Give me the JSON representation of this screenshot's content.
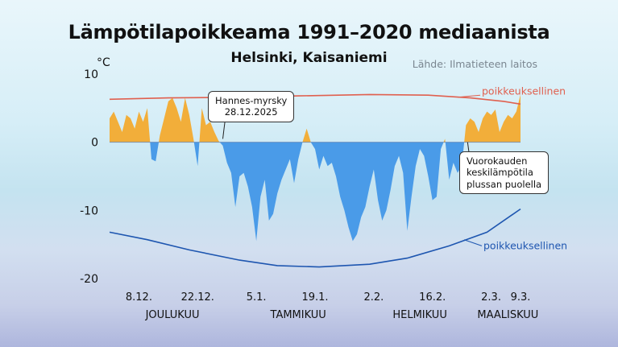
{
  "chart_data": {
    "type": "area",
    "title": "Lämpötilapoikkeama 1991–2020 mediaanista",
    "subtitle": "Helsinki, Kaisaniemi",
    "source": "Lähde: Ilmatieteen laitos",
    "ylabel": "°C",
    "ylim": [
      -20,
      10
    ],
    "yticks": [
      {
        "value": 10,
        "label": "10"
      },
      {
        "value": 0,
        "label": "0"
      },
      {
        "value": -10,
        "label": "-10"
      },
      {
        "value": -20,
        "label": "-20"
      }
    ],
    "x_start": "2025-12-01",
    "x_end": "2026-03-09",
    "xticks": [
      {
        "date": "2025-12-08",
        "label": "8.12."
      },
      {
        "date": "2025-12-22",
        "label": "22.12."
      },
      {
        "date": "2026-01-05",
        "label": "5.1."
      },
      {
        "date": "2026-01-19",
        "label": "19.1."
      },
      {
        "date": "2026-02-02",
        "label": "2.2."
      },
      {
        "date": "2026-02-16",
        "label": "16.2."
      },
      {
        "date": "2026-03-02",
        "label": "2.3."
      },
      {
        "date": "2026-03-09",
        "label": "9.3."
      }
    ],
    "months": [
      {
        "date": "2025-12-16",
        "label": "JOULUKUU"
      },
      {
        "date": "2026-01-15",
        "label": "TAMMIKUU"
      },
      {
        "date": "2026-02-13",
        "label": "HELMIKUU"
      },
      {
        "date": "2026-03-06",
        "label": "MAALISKUU"
      }
    ],
    "series": [
      {
        "color_pos": "#f2ae3a",
        "color_neg": "#4a9be8",
        "points": [
          [
            "2025-12-01",
            3.5
          ],
          [
            "2025-12-02",
            4.5
          ],
          [
            "2025-12-03",
            3.0
          ],
          [
            "2025-12-04",
            1.5
          ],
          [
            "2025-12-05",
            4.0
          ],
          [
            "2025-12-06",
            3.5
          ],
          [
            "2025-12-07",
            2.0
          ],
          [
            "2025-12-08",
            4.5
          ],
          [
            "2025-12-09",
            3.0
          ],
          [
            "2025-12-10",
            5.0
          ],
          [
            "2025-12-11",
            -2.5
          ],
          [
            "2025-12-12",
            -2.8
          ],
          [
            "2025-12-13",
            1.0
          ],
          [
            "2025-12-14",
            3.5
          ],
          [
            "2025-12-15",
            6.0
          ],
          [
            "2025-12-16",
            6.5
          ],
          [
            "2025-12-17",
            5.0
          ],
          [
            "2025-12-18",
            3.0
          ],
          [
            "2025-12-19",
            6.5
          ],
          [
            "2025-12-20",
            4.0
          ],
          [
            "2025-12-21",
            0.5
          ],
          [
            "2025-12-22",
            -3.5
          ],
          [
            "2025-12-23",
            5.0
          ],
          [
            "2025-12-24",
            2.5
          ],
          [
            "2025-12-25",
            3.0
          ],
          [
            "2025-12-26",
            1.5
          ],
          [
            "2025-12-27",
            0.2
          ],
          [
            "2025-12-28",
            -0.5
          ],
          [
            "2025-12-29",
            -3.0
          ],
          [
            "2025-12-30",
            -4.5
          ],
          [
            "2025-12-31",
            -9.5
          ],
          [
            "2026-01-01",
            -5.0
          ],
          [
            "2026-01-02",
            -4.5
          ],
          [
            "2026-01-03",
            -6.5
          ],
          [
            "2026-01-04",
            -9.5
          ],
          [
            "2026-01-05",
            -14.5
          ],
          [
            "2026-01-06",
            -8.0
          ],
          [
            "2026-01-07",
            -5.5
          ],
          [
            "2026-01-08",
            -11.5
          ],
          [
            "2026-01-09",
            -10.5
          ],
          [
            "2026-01-10",
            -7.5
          ],
          [
            "2026-01-11",
            -5.5
          ],
          [
            "2026-01-12",
            -4.0
          ],
          [
            "2026-01-13",
            -2.5
          ],
          [
            "2026-01-14",
            -6.0
          ],
          [
            "2026-01-15",
            -2.5
          ],
          [
            "2026-01-16",
            0.0
          ],
          [
            "2026-01-17",
            2.0
          ],
          [
            "2026-01-18",
            0.0
          ],
          [
            "2026-01-19",
            -1.0
          ],
          [
            "2026-01-20",
            -4.0
          ],
          [
            "2026-01-21",
            -2.0
          ],
          [
            "2026-01-22",
            -3.5
          ],
          [
            "2026-01-23",
            -3.0
          ],
          [
            "2026-01-24",
            -5.0
          ],
          [
            "2026-01-25",
            -8.0
          ],
          [
            "2026-01-26",
            -10.0
          ],
          [
            "2026-01-27",
            -12.5
          ],
          [
            "2026-01-28",
            -14.5
          ],
          [
            "2026-01-29",
            -13.5
          ],
          [
            "2026-01-30",
            -11.0
          ],
          [
            "2026-01-31",
            -9.5
          ],
          [
            "2026-02-01",
            -6.5
          ],
          [
            "2026-02-02",
            -4.0
          ],
          [
            "2026-02-03",
            -8.5
          ],
          [
            "2026-02-04",
            -11.5
          ],
          [
            "2026-02-05",
            -10.0
          ],
          [
            "2026-02-06",
            -7.0
          ],
          [
            "2026-02-07",
            -3.5
          ],
          [
            "2026-02-08",
            -2.0
          ],
          [
            "2026-02-09",
            -4.5
          ],
          [
            "2026-02-10",
            -13.0
          ],
          [
            "2026-02-11",
            -8.0
          ],
          [
            "2026-02-12",
            -3.5
          ],
          [
            "2026-02-13",
            -1.0
          ],
          [
            "2026-02-14",
            -2.0
          ],
          [
            "2026-02-15",
            -5.0
          ],
          [
            "2026-02-16",
            -8.5
          ],
          [
            "2026-02-17",
            -8.0
          ],
          [
            "2026-02-18",
            -1.0
          ],
          [
            "2026-02-19",
            0.5
          ],
          [
            "2026-02-20",
            -5.5
          ],
          [
            "2026-02-21",
            -3.0
          ],
          [
            "2026-02-22",
            -4.5
          ],
          [
            "2026-02-23",
            -3.5
          ],
          [
            "2026-02-24",
            2.5
          ],
          [
            "2026-02-25",
            3.5
          ],
          [
            "2026-02-26",
            3.0
          ],
          [
            "2026-02-27",
            1.5
          ],
          [
            "2026-02-28",
            3.5
          ],
          [
            "2026-03-01",
            4.5
          ],
          [
            "2026-03-02",
            4.0
          ],
          [
            "2026-03-03",
            4.8
          ],
          [
            "2026-03-04",
            1.5
          ],
          [
            "2026-03-05",
            3.0
          ],
          [
            "2026-03-06",
            4.0
          ],
          [
            "2026-03-07",
            3.5
          ],
          [
            "2026-03-08",
            4.5
          ],
          [
            "2026-03-09",
            7.0
          ]
        ]
      },
      {
        "name": "poikkeuksellinen",
        "color": "#e0604f",
        "points": [
          [
            "2025-12-01",
            6.3
          ],
          [
            "2025-12-15",
            6.5
          ],
          [
            "2026-01-01",
            6.6
          ],
          [
            "2026-01-15",
            6.8
          ],
          [
            "2026-02-01",
            7.0
          ],
          [
            "2026-02-15",
            6.9
          ],
          [
            "2026-02-25",
            6.5
          ],
          [
            "2026-03-05",
            6.0
          ],
          [
            "2026-03-09",
            5.6
          ]
        ]
      },
      {
        "name": "poikkeuksellinen",
        "color": "#1e56b0",
        "points": [
          [
            "2025-12-01",
            -13.2
          ],
          [
            "2025-12-10",
            -14.3
          ],
          [
            "2025-12-20",
            -15.8
          ],
          [
            "2026-01-01",
            -17.3
          ],
          [
            "2026-01-10",
            -18.1
          ],
          [
            "2026-01-20",
            -18.3
          ],
          [
            "2026-02-01",
            -17.9
          ],
          [
            "2026-02-10",
            -17.0
          ],
          [
            "2026-02-20",
            -15.2
          ],
          [
            "2026-03-01",
            -13.2
          ],
          [
            "2026-03-09",
            -9.8
          ]
        ]
      }
    ],
    "annotations": [
      {
        "text": [
          "Hannes-myrsky",
          "28.12.2025"
        ],
        "date": "2025-12-28",
        "value": 0.5
      },
      {
        "text": [
          "Vuorokauden",
          "keskilämpötila",
          "plussan puolella"
        ],
        "date": "2026-02-24",
        "value": 0.0
      }
    ]
  }
}
